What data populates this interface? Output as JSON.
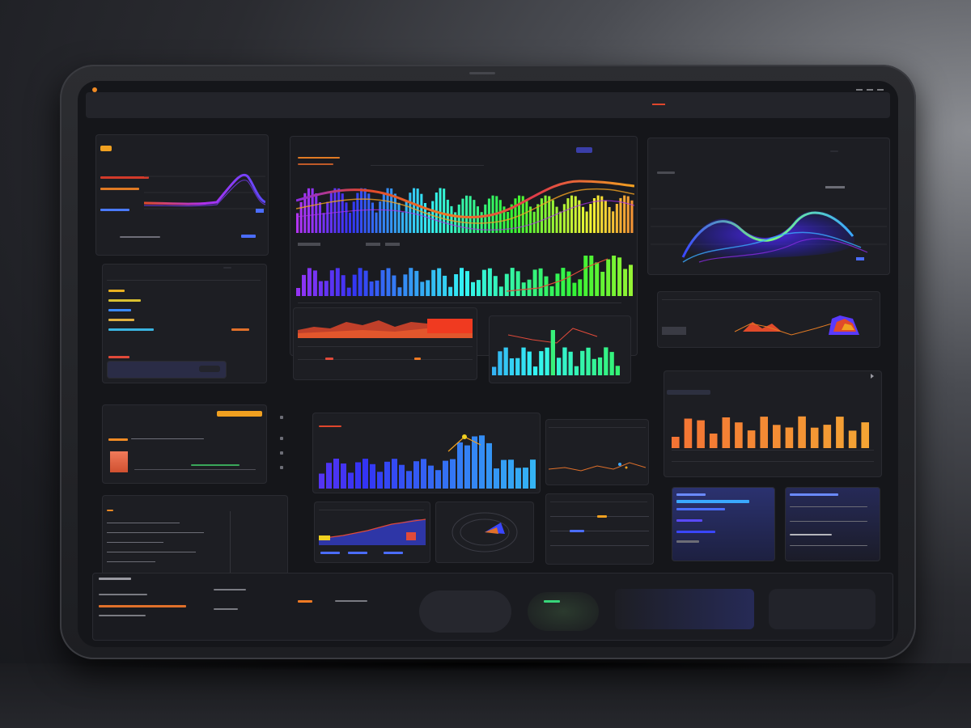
{
  "app": {
    "window_title": "",
    "brand_color": "#f08a24"
  },
  "navbar": {
    "logo": "",
    "title": "",
    "subtitle": "",
    "links": [
      "",
      "",
      ""
    ]
  },
  "colors": {
    "accent_orange": "#f08a24",
    "accent_red": "#e0462c",
    "accent_purple": "#8a2be2",
    "accent_blue": "#3a46ff",
    "accent_green": "#38d67a",
    "panel_bg": "#1d1e23",
    "screen_bg": "#15161a"
  },
  "panels": {
    "left_top": {
      "title": ""
    },
    "left_list": {
      "button": ""
    },
    "left_mid": {
      "title": ""
    },
    "left_bottom": {
      "title": ""
    },
    "main_wave": {
      "title": "",
      "legend": [
        "",
        "",
        "",
        ""
      ]
    },
    "right_top": {
      "title": "",
      "action": ""
    },
    "right_bars": {
      "title": ""
    },
    "center_bars": {
      "title": ""
    }
  },
  "icons": [
    "gear-icon",
    "chevron-right-icon",
    "menu-icon",
    "close-icon"
  ]
}
